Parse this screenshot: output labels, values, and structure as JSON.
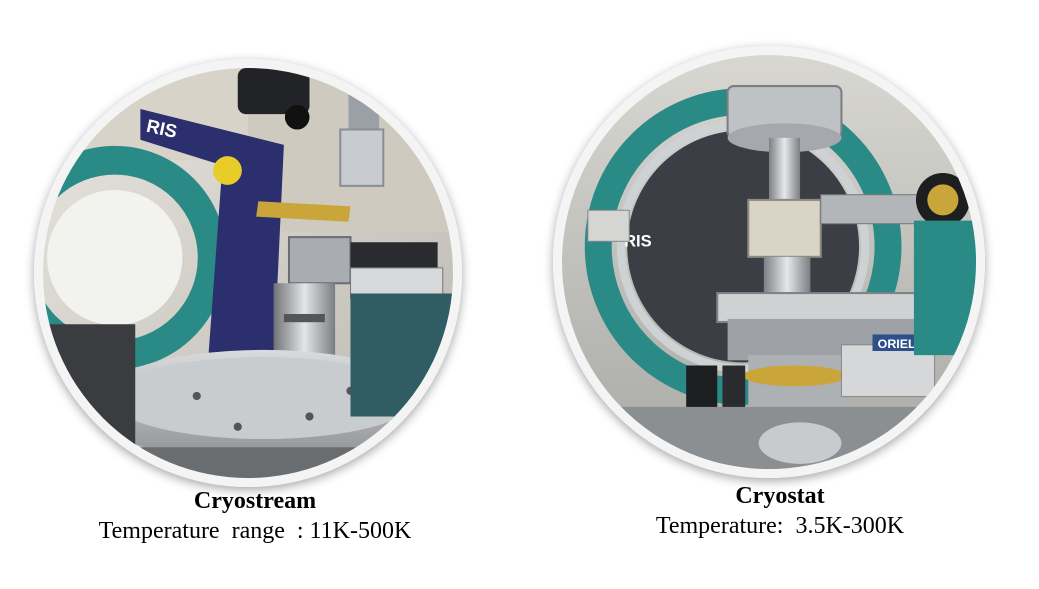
{
  "left_panel": {
    "title": "Cryostream",
    "subtitle": "Temperature  range  : 11K-500K",
    "photo_label": "RIS"
  },
  "right_panel": {
    "title": "Cryostat",
    "subtitle": "Temperature:  3.5K-300K",
    "photo_label": "RIS",
    "sticker_label": "ORIEL"
  },
  "colors": {
    "teal_ring": "#2a8a86",
    "steel": "#b9bcc0",
    "navy_frame": "#2c2f6e",
    "brass": "#c9a53a"
  }
}
